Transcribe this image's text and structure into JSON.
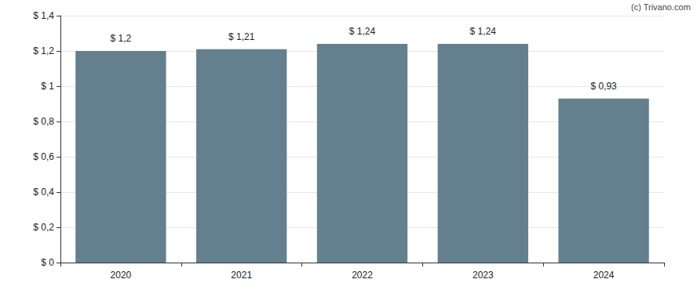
{
  "chart_data": {
    "type": "bar",
    "categories": [
      "2020",
      "2021",
      "2022",
      "2023",
      "2024"
    ],
    "values": [
      1.2,
      1.21,
      1.24,
      1.24,
      0.93
    ],
    "value_labels": [
      "$ 1,2",
      "$ 1,21",
      "$ 1,24",
      "$ 1,24",
      "$ 0,93"
    ],
    "data_labels": true,
    "color": "#64808f",
    "ylim": [
      0,
      1.4
    ],
    "yticks": [
      {
        "value": 0,
        "label": "$ 0"
      },
      {
        "value": 0.2,
        "label": "$ 0,2"
      },
      {
        "value": 0.4,
        "label": "$ 0,4"
      },
      {
        "value": 0.6,
        "label": "$ 0,6"
      },
      {
        "value": 0.8,
        "label": "$ 0,8"
      },
      {
        "value": 1,
        "label": "$ 1"
      },
      {
        "value": 1.2,
        "label": "$ 1,2"
      },
      {
        "value": 1.4,
        "label": "$ 1,4"
      }
    ],
    "grid": true,
    "annotations": [
      "(c) Trivano.com"
    ]
  }
}
